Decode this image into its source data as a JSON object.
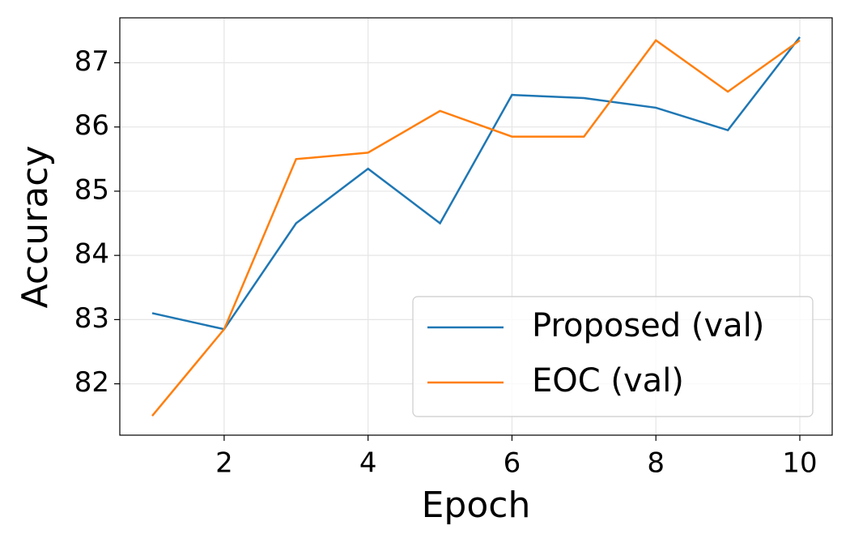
{
  "chart_data": {
    "type": "line",
    "x_label": "Epoch",
    "y_label": "Accuracy",
    "x": [
      1,
      2,
      3,
      4,
      5,
      6,
      7,
      8,
      9,
      10
    ],
    "series": [
      {
        "name": "Proposed (val)",
        "color": "#1f77b4",
        "values": [
          83.1,
          82.85,
          84.5,
          85.35,
          84.5,
          86.5,
          86.45,
          86.3,
          85.95,
          87.4
        ]
      },
      {
        "name": "EOC (val)",
        "color": "#ff7f0e",
        "values": [
          81.5,
          82.85,
          85.5,
          85.6,
          86.25,
          85.85,
          85.85,
          87.35,
          86.55,
          87.35
        ]
      }
    ],
    "xlim": [
      0.55,
      10.45
    ],
    "xticks": [
      2,
      4,
      6,
      8,
      10
    ],
    "ylim": [
      81.2,
      87.7
    ],
    "yticks": [
      82,
      83,
      84,
      85,
      86,
      87
    ],
    "grid": true,
    "legend": "lower right"
  }
}
